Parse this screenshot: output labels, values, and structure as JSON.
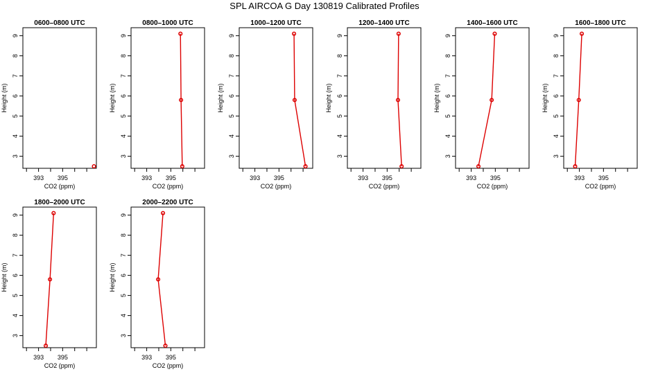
{
  "title": "SPL AIRCOA G  Day 130819  Calibrated Profiles",
  "colors": {
    "profile": "#dd0000",
    "axis": "#000000"
  },
  "chart_data": [
    {
      "type": "line",
      "title": "0600–0800 UTC",
      "xlabel": "CO2 (ppm)",
      "ylabel": "Height (m)",
      "xlim": [
        391.7,
        397.8
      ],
      "ylim": [
        2.4,
        9.4
      ],
      "xticks": [
        392,
        393,
        394,
        395,
        396,
        397
      ],
      "xticklabels": [
        "393",
        "395"
      ],
      "yticks": [
        3,
        4,
        5,
        6,
        7,
        8,
        9
      ],
      "x": [
        397.6
      ],
      "y": [
        2.5
      ]
    },
    {
      "type": "line",
      "title": "0800–1000 UTC",
      "xlabel": "CO2 (ppm)",
      "ylabel": "Height (m)",
      "xlim": [
        391.7,
        397.8
      ],
      "ylim": [
        2.4,
        9.4
      ],
      "xticks": [
        392,
        393,
        394,
        395,
        396,
        397
      ],
      "xticklabels": [
        "393",
        "395"
      ],
      "yticks": [
        3,
        4,
        5,
        6,
        7,
        8,
        9
      ],
      "x": [
        395.8,
        395.85,
        395.95
      ],
      "y": [
        9.1,
        5.8,
        2.5
      ]
    },
    {
      "type": "line",
      "title": "1000–1200 UTC",
      "xlabel": "CO2 (ppm)",
      "ylabel": "Height (m)",
      "xlim": [
        391.7,
        397.8
      ],
      "ylim": [
        2.4,
        9.4
      ],
      "xticks": [
        392,
        393,
        394,
        395,
        396,
        397
      ],
      "xticklabels": [
        "393",
        "395"
      ],
      "yticks": [
        3,
        4,
        5,
        6,
        7,
        8,
        9
      ],
      "x": [
        396.25,
        396.3,
        397.2
      ],
      "y": [
        9.1,
        5.8,
        2.5
      ]
    },
    {
      "type": "line",
      "title": "1200–1400 UTC",
      "xlabel": "CO2 (ppm)",
      "ylabel": "Height (m)",
      "xlim": [
        391.7,
        397.8
      ],
      "ylim": [
        2.4,
        9.4
      ],
      "xticks": [
        392,
        393,
        394,
        395,
        396,
        397
      ],
      "xticklabels": [
        "393",
        "395"
      ],
      "yticks": [
        3,
        4,
        5,
        6,
        7,
        8,
        9
      ],
      "x": [
        395.95,
        395.9,
        396.2
      ],
      "y": [
        9.1,
        5.8,
        2.5
      ]
    },
    {
      "type": "line",
      "title": "1400–1600 UTC",
      "xlabel": "CO2 (ppm)",
      "ylabel": "Height (m)",
      "xlim": [
        391.7,
        397.8
      ],
      "ylim": [
        2.4,
        9.4
      ],
      "xticks": [
        392,
        393,
        394,
        395,
        396,
        397
      ],
      "xticklabels": [
        "393",
        "395"
      ],
      "yticks": [
        3,
        4,
        5,
        6,
        7,
        8,
        9
      ],
      "x": [
        394.95,
        394.7,
        393.6
      ],
      "y": [
        9.1,
        5.8,
        2.5
      ]
    },
    {
      "type": "line",
      "title": "1600–1800 UTC",
      "xlabel": "CO2 (ppm)",
      "ylabel": "Height (m)",
      "xlim": [
        391.7,
        397.8
      ],
      "ylim": [
        2.4,
        9.4
      ],
      "xticks": [
        392,
        393,
        394,
        395,
        396,
        397
      ],
      "xticklabels": [
        "393",
        "395"
      ],
      "yticks": [
        3,
        4,
        5,
        6,
        7,
        8,
        9
      ],
      "x": [
        393.2,
        392.95,
        392.65
      ],
      "y": [
        9.1,
        5.8,
        2.5
      ]
    },
    {
      "type": "line",
      "title": "1800–2000 UTC",
      "xlabel": "CO2 (ppm)",
      "ylabel": "Height (m)",
      "xlim": [
        391.7,
        397.8
      ],
      "ylim": [
        2.4,
        9.4
      ],
      "xticks": [
        392,
        393,
        394,
        395,
        396,
        397
      ],
      "xticklabels": [
        "393",
        "395"
      ],
      "yticks": [
        3,
        4,
        5,
        6,
        7,
        8,
        9
      ],
      "x": [
        394.25,
        393.95,
        393.6
      ],
      "y": [
        9.1,
        5.8,
        2.5
      ]
    },
    {
      "type": "line",
      "title": "2000–2200 UTC",
      "xlabel": "CO2 (ppm)",
      "ylabel": "Height (m)",
      "xlim": [
        391.7,
        397.8
      ],
      "ylim": [
        2.4,
        9.4
      ],
      "xticks": [
        392,
        393,
        394,
        395,
        396,
        397
      ],
      "xticklabels": [
        "393",
        "395"
      ],
      "yticks": [
        3,
        4,
        5,
        6,
        7,
        8,
        9
      ],
      "x": [
        394.35,
        393.95,
        394.55
      ],
      "y": [
        9.1,
        5.8,
        2.5
      ]
    }
  ]
}
